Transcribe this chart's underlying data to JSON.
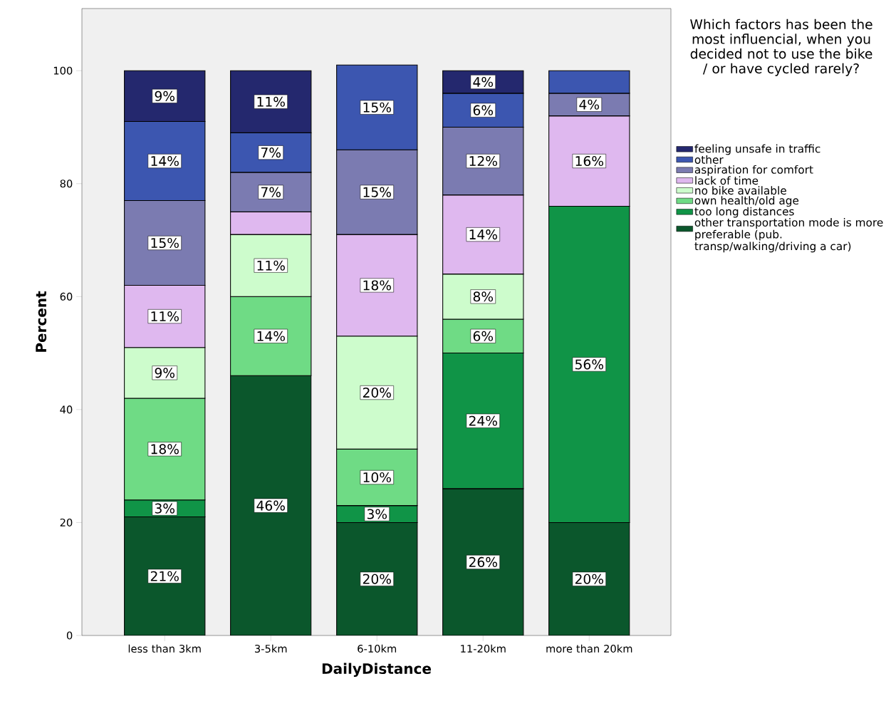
{
  "chart_data": {
    "type": "bar",
    "stacked": true,
    "xlabel": "DailyDistance",
    "ylabel": "Percent",
    "legend_title": "Which factors has been the most influencial, when you decided not to use the bike / or have cycled rarely?",
    "categories": [
      "less than 3km",
      "3-5km",
      "6-10km",
      "11-20km",
      "more than 20km"
    ],
    "ylim": [
      0,
      111
    ],
    "yticks": [
      0,
      20,
      40,
      60,
      80,
      100
    ],
    "grid": false,
    "legend": "right",
    "series": [
      {
        "name": "other transportation mode is more preferable (pub. transp/walking/driving a car)",
        "color": "#0b572c",
        "values": [
          21,
          46,
          20,
          26,
          20
        ],
        "value_labels": [
          "21%",
          "46%",
          "20%",
          "26%",
          "20%"
        ]
      },
      {
        "name": "too long distances",
        "color": "#109447",
        "values": [
          3,
          null,
          3,
          24,
          56
        ],
        "value_labels": [
          "3%",
          null,
          "3%",
          "24%",
          "56%"
        ]
      },
      {
        "name": "own health/old age",
        "color": "#6fdb85",
        "values": [
          18,
          14,
          10,
          6,
          null
        ],
        "value_labels": [
          "18%",
          "14%",
          "10%",
          "6%",
          null
        ]
      },
      {
        "name": "no bike available",
        "color": "#cdfccc",
        "values": [
          9,
          11,
          20,
          8,
          null
        ],
        "value_labels": [
          "9%",
          "11%",
          "20%",
          "8%",
          null
        ]
      },
      {
        "name": "lack of time",
        "color": "#dfb8ef",
        "values": [
          11,
          4,
          18,
          14,
          16
        ],
        "value_labels": [
          "11%",
          null,
          "18%",
          "14%",
          "16%"
        ]
      },
      {
        "name": "aspiration for comfort",
        "color": "#7b7bb1",
        "values": [
          15,
          7,
          15,
          12,
          4
        ],
        "value_labels": [
          "15%",
          "7%",
          "15%",
          "12%",
          "4%"
        ]
      },
      {
        "name": "other",
        "color": "#3c56b0",
        "values": [
          14,
          7,
          15,
          6,
          4
        ],
        "value_labels": [
          "14%",
          "7%",
          "15%",
          "6%",
          null
        ]
      },
      {
        "name": "feeling unsafe in traffic",
        "color": "#24286e",
        "values": [
          9,
          11,
          null,
          4,
          null
        ],
        "value_labels": [
          "9%",
          "11%",
          null,
          "4%",
          null
        ]
      }
    ]
  }
}
